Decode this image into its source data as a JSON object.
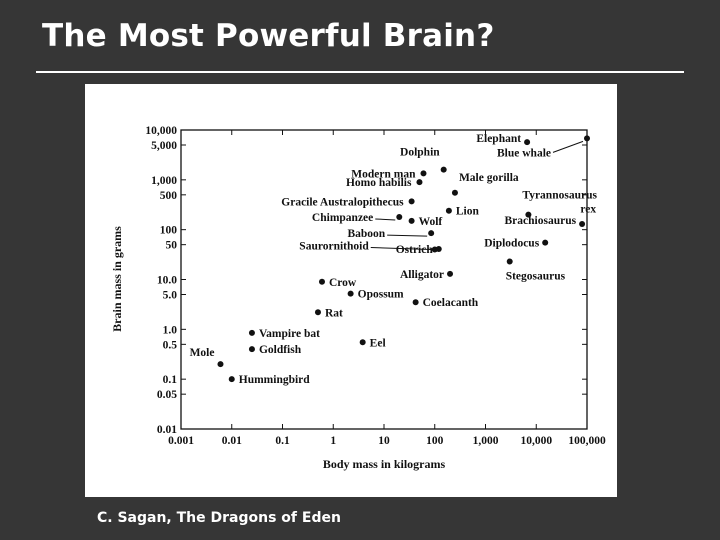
{
  "slide": {
    "title": "The Most Powerful Brain?",
    "caption": "C. Sagan, The Dragons of Eden",
    "background": "#363636",
    "text_color": "#ffffff"
  },
  "chart_data": {
    "type": "scatter",
    "xlabel": "Body mass in kilograms",
    "ylabel": "Brain mass in grams",
    "x_scale": "log",
    "y_scale": "log",
    "xlim": [
      0.001,
      100000
    ],
    "ylim": [
      0.01,
      10000
    ],
    "x_ticks": [
      {
        "v": 0.001,
        "label": "0.001"
      },
      {
        "v": 0.01,
        "label": "0.01"
      },
      {
        "v": 0.1,
        "label": "0.1"
      },
      {
        "v": 1,
        "label": "1"
      },
      {
        "v": 10,
        "label": "10"
      },
      {
        "v": 100,
        "label": "100"
      },
      {
        "v": 1000,
        "label": "1,000"
      },
      {
        "v": 10000,
        "label": "10,000"
      },
      {
        "v": 100000,
        "label": "100,000"
      }
    ],
    "y_ticks": [
      {
        "v": 10000,
        "label": "10,000"
      },
      {
        "v": 5000,
        "label": "5,000"
      },
      {
        "v": 1000,
        "label": "1,000"
      },
      {
        "v": 500,
        "label": "500"
      },
      {
        "v": 100,
        "label": "100"
      },
      {
        "v": 50,
        "label": "50"
      },
      {
        "v": 10,
        "label": "10.0"
      },
      {
        "v": 5,
        "label": "5.0"
      },
      {
        "v": 1,
        "label": "1.0"
      },
      {
        "v": 0.5,
        "label": "0.5"
      },
      {
        "v": 0.1,
        "label": "0.1"
      },
      {
        "v": 0.05,
        "label": "0.05"
      },
      {
        "v": 0.01,
        "label": "0.01"
      }
    ],
    "points": [
      {
        "name": "Elephant",
        "x": 6600,
        "y": 5700
      },
      {
        "name": "Blue whale",
        "x": 100000,
        "y": 6800
      },
      {
        "name": "Dolphin",
        "x": 150,
        "y": 1600
      },
      {
        "name": "Modern man",
        "x": 60,
        "y": 1350
      },
      {
        "name": "Homo habilis",
        "x": 50,
        "y": 900
      },
      {
        "name": "Male gorilla",
        "x": 250,
        "y": 550
      },
      {
        "name": "Gracile Australopithecus",
        "x": 35,
        "y": 370
      },
      {
        "name": "Tyrannosaurus rex",
        "x": 7000,
        "y": 200
      },
      {
        "name": "Lion",
        "x": 190,
        "y": 240
      },
      {
        "name": "Chimpanzee",
        "x": 20,
        "y": 180
      },
      {
        "name": "Wolf",
        "x": 35,
        "y": 150
      },
      {
        "name": "Baboon",
        "x": 85,
        "y": 85
      },
      {
        "name": "Brachiosaurus",
        "x": 80000,
        "y": 130
      },
      {
        "name": "Saurornithoid",
        "x": 100,
        "y": 40
      },
      {
        "name": "Ostrich",
        "x": 120,
        "y": 41
      },
      {
        "name": "Diplodocus",
        "x": 15000,
        "y": 55
      },
      {
        "name": "Stegosaurus",
        "x": 3000,
        "y": 23
      },
      {
        "name": "Alligator",
        "x": 200,
        "y": 13
      },
      {
        "name": "Crow",
        "x": 0.6,
        "y": 9
      },
      {
        "name": "Opossum",
        "x": 2.2,
        "y": 5.2
      },
      {
        "name": "Coelacanth",
        "x": 42,
        "y": 3.5
      },
      {
        "name": "Rat",
        "x": 0.5,
        "y": 2.2
      },
      {
        "name": "Vampire bat",
        "x": 0.025,
        "y": 0.85
      },
      {
        "name": "Eel",
        "x": 3.8,
        "y": 0.55
      },
      {
        "name": "Goldfish",
        "x": 0.025,
        "y": 0.4
      },
      {
        "name": "Mole",
        "x": 0.006,
        "y": 0.2
      },
      {
        "name": "Hummingbird",
        "x": 0.01,
        "y": 0.1
      }
    ]
  }
}
